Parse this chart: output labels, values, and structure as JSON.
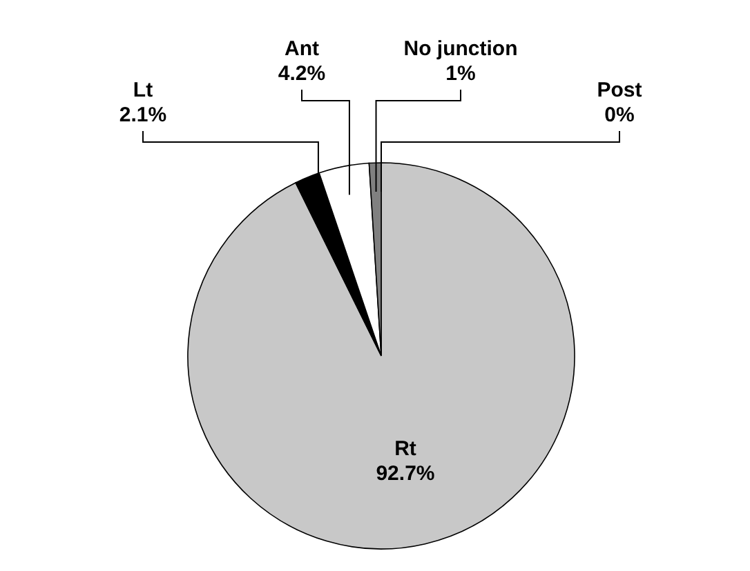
{
  "chart_data": {
    "type": "pie",
    "categories": [
      "Rt",
      "Lt",
      "Ant",
      "No junction",
      "Post"
    ],
    "values": [
      92.7,
      2.1,
      4.2,
      1,
      0
    ],
    "colors": [
      "#c8c8c8",
      "#000000",
      "#ffffff",
      "#808080",
      "#a0a0a0"
    ],
    "value_labels": [
      "92.7%",
      "2.1%",
      "4.2%",
      "1%",
      "0%"
    ]
  }
}
